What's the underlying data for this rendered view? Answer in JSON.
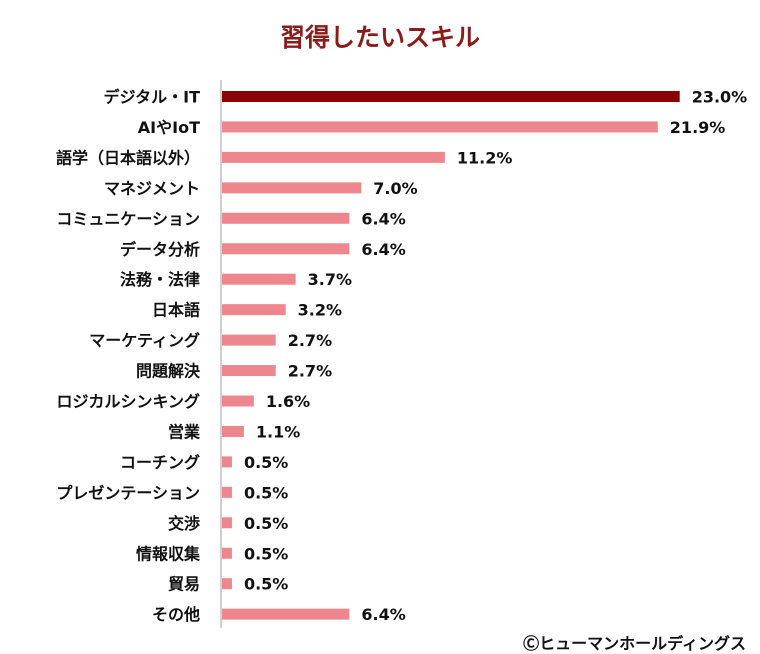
{
  "chart_data": {
    "type": "bar",
    "orientation": "horizontal",
    "title": "習得したいスキル",
    "categories": [
      "デジタル・IT",
      "AIやIoT",
      "語学（日本語以外）",
      "マネジメント",
      "コミュニケーション",
      "データ分析",
      "法務・法律",
      "日本語",
      "マーケティング",
      "問題解決",
      "ロジカルシンキング",
      "営業",
      "コーチング",
      "プレゼンテーション",
      "交渉",
      "情報収集",
      "貿易",
      "その他"
    ],
    "values": [
      23.0,
      21.9,
      11.2,
      7.0,
      6.4,
      6.4,
      3.7,
      3.2,
      2.7,
      2.7,
      1.6,
      1.1,
      0.5,
      0.5,
      0.5,
      0.5,
      0.5,
      6.4
    ],
    "data_labels": [
      "23.0%",
      "21.9%",
      "11.2%",
      "7.0%",
      "6.4%",
      "6.4%",
      "3.7%",
      "3.2%",
      "2.7%",
      "2.7%",
      "1.6%",
      "1.1%",
      "0.5%",
      "0.5%",
      "0.5%",
      "0.5%",
      "0.5%",
      "6.4%"
    ],
    "xlim": [
      0,
      25
    ],
    "grid": false,
    "colors": {
      "highlight": "#8b0000",
      "default": "#ee868e",
      "title": "#8b1a1a"
    }
  },
  "credit": "Ⓒヒューマンホールディングス"
}
